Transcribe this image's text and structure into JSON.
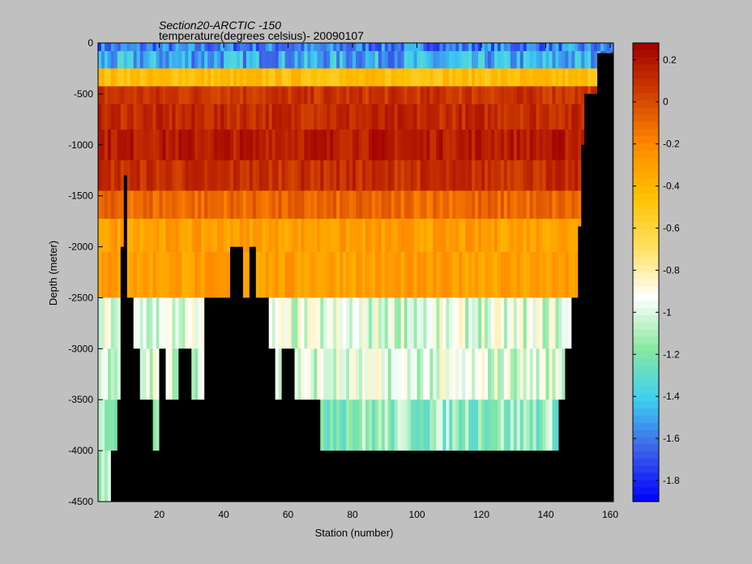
{
  "chart_data": {
    "type": "heatmap",
    "title": "Section20-ARCTIC -150",
    "subtitle": "temperature(degrees celsius)- 20090107",
    "xlabel": "Station (number)",
    "ylabel": "Depth (meter)",
    "xlim": [
      1,
      161
    ],
    "ylim": [
      -4500,
      0
    ],
    "x_ticks": [
      20,
      40,
      60,
      80,
      100,
      120,
      140,
      160
    ],
    "y_ticks": [
      0,
      -500,
      -1000,
      -1500,
      -2000,
      -2500,
      -3000,
      -3500,
      -4000,
      -4500
    ],
    "colorbar": {
      "range": [
        -1.9,
        0.28
      ],
      "ticks": [
        0.2,
        0,
        -0.2,
        -0.4,
        -0.6,
        -0.8,
        -1,
        -1.2,
        -1.4,
        -1.6,
        -1.8
      ],
      "colormap": [
        "#0000ff",
        "#3c60e8",
        "#3ccff0",
        "#88e8a0",
        "#ffffff",
        "#ffe060",
        "#ffc000",
        "#ff8800",
        "#d04000",
        "#a00000"
      ]
    },
    "depth_levels": [
      -10,
      -150,
      -350,
      -500,
      -700,
      -1000,
      -1300,
      -1600,
      -1850,
      -2250,
      -2750,
      -3250,
      -3750,
      -4250
    ],
    "profile_temperatures": {
      "-10": -1.6,
      "-150": -1.5,
      "-350": -0.45,
      "-500": 0.08,
      "-700": 0.12,
      "-1000": 0.18,
      "-1300": 0.1,
      "-1600": -0.1,
      "-1850": -0.3,
      "-2250": -0.3,
      "-2750": -1.0,
      "-3250": -1.0,
      "-3750": -1.15,
      "-4250": -1.15
    },
    "bottom_depth_by_station": [
      [
        1,
        -4500
      ],
      [
        5,
        -4000
      ],
      [
        7,
        -3500
      ],
      [
        8,
        -2000
      ],
      [
        9,
        -1300
      ],
      [
        10,
        -2500
      ],
      [
        12,
        -3000
      ],
      [
        14,
        -3500
      ],
      [
        18,
        -4000
      ],
      [
        20,
        -3000
      ],
      [
        22,
        -3500
      ],
      [
        26,
        -3000
      ],
      [
        30,
        -3500
      ],
      [
        34,
        -2500
      ],
      [
        38,
        -2500
      ],
      [
        42,
        -2000
      ],
      [
        46,
        -2500
      ],
      [
        48,
        -2000
      ],
      [
        50,
        -2500
      ],
      [
        54,
        -3000
      ],
      [
        56,
        -3500
      ],
      [
        58,
        -3000
      ],
      [
        62,
        -3500
      ],
      [
        70,
        -4000
      ],
      [
        144,
        -3500
      ],
      [
        146,
        -3000
      ],
      [
        148,
        -2500
      ],
      [
        150,
        -1800
      ],
      [
        151,
        -1000
      ],
      [
        152,
        -500
      ],
      [
        156,
        -100
      ],
      [
        161,
        0
      ]
    ],
    "grid": false,
    "legend": "colorbar-right"
  }
}
